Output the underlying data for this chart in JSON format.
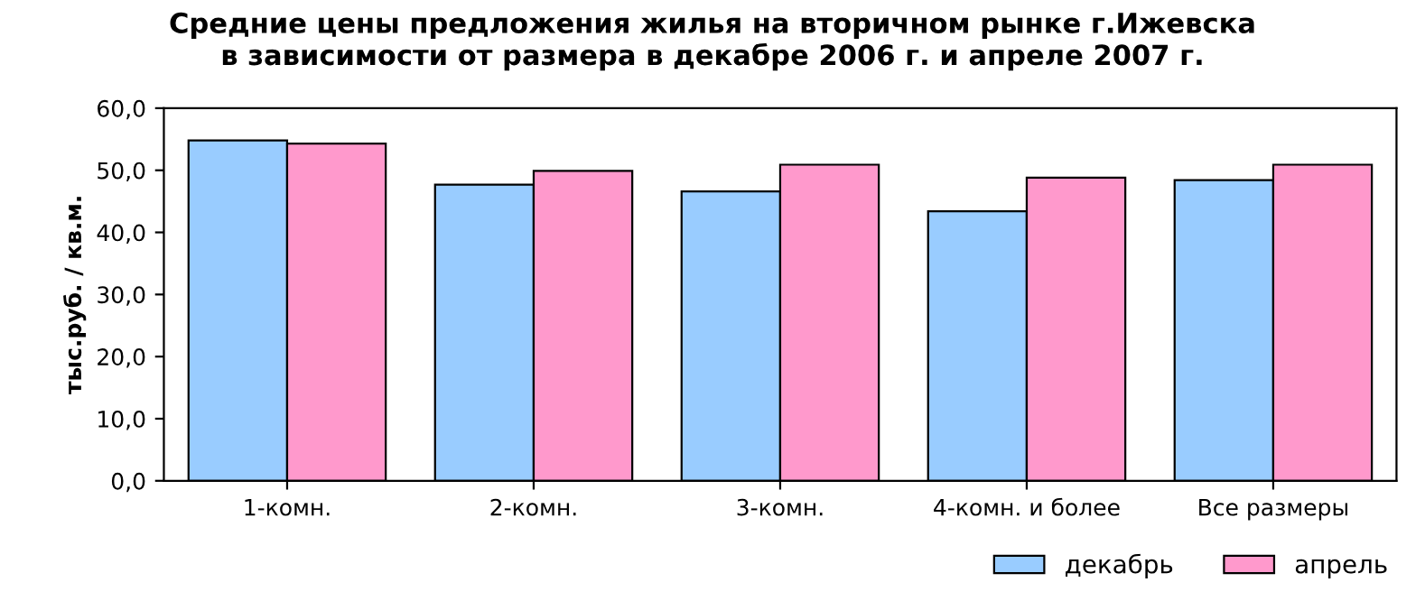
{
  "chart_data": {
    "type": "bar",
    "title": "Средние цены предложения жилья на вторичном рынке г.Ижевска\nв зависимости от размера в декабре 2006 г. и апреле 2007 г.",
    "ylabel": "тыс.руб. / кв.м.",
    "categories": [
      "1-комн.",
      "2-комн.",
      "3-комн.",
      "4-комн. и более",
      "Все размеры"
    ],
    "series": [
      {
        "name": "декабрь",
        "color": "#99ccff",
        "values": [
          54.8,
          47.7,
          46.6,
          43.4,
          48.4
        ]
      },
      {
        "name": "апрель",
        "color": "#ff99cc",
        "values": [
          54.3,
          49.9,
          50.9,
          48.8,
          50.9
        ]
      }
    ],
    "ylim": [
      0,
      60
    ],
    "yticks": [
      {
        "value": 0,
        "label": "0,0"
      },
      {
        "value": 10,
        "label": "10,0"
      },
      {
        "value": 20,
        "label": "20,0"
      },
      {
        "value": 30,
        "label": "30,0"
      },
      {
        "value": 40,
        "label": "40,0"
      },
      {
        "value": 50,
        "label": "50,0"
      },
      {
        "value": 60,
        "label": "60,0"
      }
    ],
    "grid": false,
    "legend": "bottom right"
  }
}
